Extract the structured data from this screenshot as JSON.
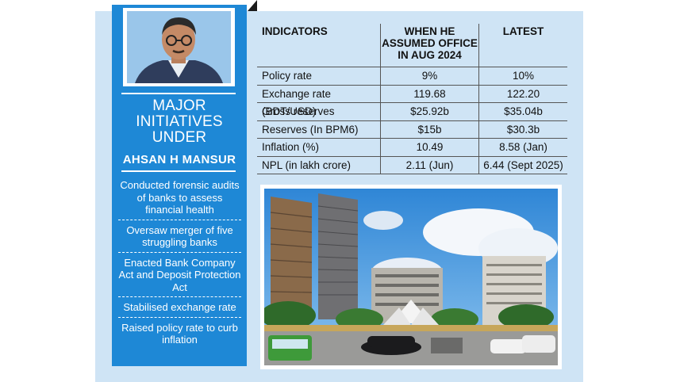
{
  "sidebar": {
    "title_lines": [
      "MAJOR",
      "INITIATIVES",
      "UNDER"
    ],
    "name": "AHSAN H MANSUR",
    "initiatives": [
      "Conducted forensic audits of banks to assess financial health",
      "Oversaw merger of five struggling banks",
      "Enacted Bank Company Act and Deposit Protection Act",
      "Stabilised exchange rate",
      "Raised policy rate to curb inflation"
    ]
  },
  "table": {
    "headers": [
      "INDICATORS",
      "WHEN HE ASSUMED OFFICE IN AUG 2024",
      "LATEST"
    ],
    "rows": [
      [
        "Policy rate",
        "9%",
        "10%"
      ],
      [
        "Exchange rate (BDT/USD)",
        "119.68",
        "122.20"
      ],
      [
        "Gross reserves",
        "$25.92b",
        "$35.04b"
      ],
      [
        "Reserves (In BPM6)",
        "$15b",
        "$30.3b"
      ],
      [
        "Inflation (%)",
        "10.49",
        "8.58 (Jan)"
      ],
      [
        "NPL (in lakh crore)",
        "2.11 (Jun)",
        "6.44 (Sept 2025)"
      ]
    ]
  },
  "colors": {
    "sidebar": "#1e88d6",
    "background_panel": "#cfe4f5"
  }
}
